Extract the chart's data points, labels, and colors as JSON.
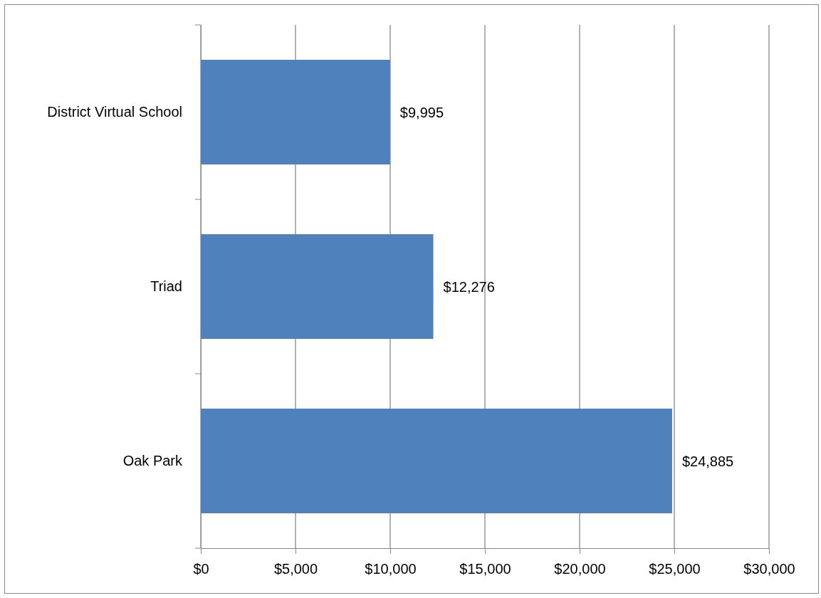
{
  "chart_data": {
    "type": "bar",
    "orientation": "horizontal",
    "categories": [
      "District Virtual School",
      "Triad",
      "Oak Park"
    ],
    "values": [
      9995,
      12276,
      24885
    ],
    "color": "#4f81bd",
    "value_labels": [
      "$9,995",
      "$12,276",
      "$24,885"
    ],
    "xlim": [
      0,
      30000
    ],
    "xticks": [
      {
        "value": 0,
        "label": "$0"
      },
      {
        "value": 5000,
        "label": "$5,000"
      },
      {
        "value": 10000,
        "label": "$10,000"
      },
      {
        "value": 15000,
        "label": "$15,000"
      },
      {
        "value": 20000,
        "label": "$20,000"
      },
      {
        "value": 25000,
        "label": "$25,000"
      },
      {
        "value": 30000,
        "label": "$30,000"
      }
    ],
    "grid": "x"
  }
}
